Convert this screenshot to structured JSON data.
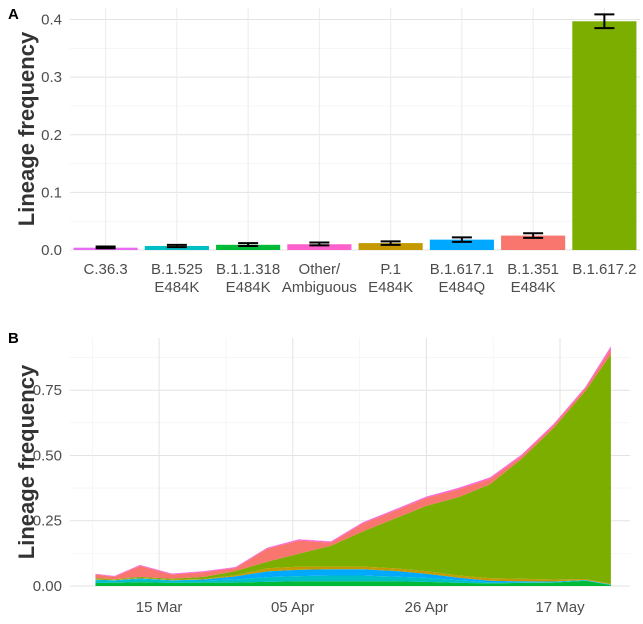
{
  "panels": {
    "a_label": "A",
    "b_label": "B"
  },
  "chart_data": [
    {
      "type": "bar",
      "panel": "A",
      "ylabel": "Lineage frequency",
      "xlabel": "",
      "ylim": [
        0,
        0.42
      ],
      "yticks": [
        "0.0",
        "0.1",
        "0.2",
        "0.3",
        "0.4"
      ],
      "grid": true,
      "categories": [
        [
          "C.36.3"
        ],
        [
          "B.1.525",
          "E484K"
        ],
        [
          "B.1.1.318",
          "E484K"
        ],
        [
          "Other/",
          "Ambiguous"
        ],
        [
          "P.1",
          "E484K"
        ],
        [
          "B.1.617.1",
          "E484Q"
        ],
        [
          "B.1.351",
          "E484K"
        ],
        [
          "B.1.617.2"
        ]
      ],
      "values": [
        0.004,
        0.007,
        0.009,
        0.01,
        0.012,
        0.018,
        0.025,
        0.397
      ],
      "err_low": [
        0.003,
        0.005,
        0.007,
        0.008,
        0.009,
        0.014,
        0.021,
        0.385
      ],
      "err_high": [
        0.006,
        0.009,
        0.012,
        0.013,
        0.015,
        0.022,
        0.029,
        0.409
      ],
      "colors": [
        "#E76BF3",
        "#00BFC4",
        "#00BA38",
        "#FF61CC",
        "#C49A00",
        "#00A9FF",
        "#F8766D",
        "#7CAE00"
      ]
    },
    {
      "type": "area",
      "panel": "B",
      "stacked": true,
      "ylabel": "Lineage frequency",
      "xlabel": "",
      "ylim": [
        0,
        0.95
      ],
      "yticks": [
        "0.00",
        "0.25",
        "0.50",
        "0.75"
      ],
      "xticks": [
        "15 Mar",
        "05 Apr",
        "26 Apr",
        "17 May"
      ],
      "xtick_days": [
        14,
        35,
        56,
        77
      ],
      "x": [
        "2021-03-05",
        "2021-03-08",
        "2021-03-12",
        "2021-03-17",
        "2021-03-22",
        "2021-03-27",
        "2021-04-01",
        "2021-04-06",
        "2021-04-11",
        "2021-04-16",
        "2021-04-21",
        "2021-04-26",
        "2021-05-01",
        "2021-05-06",
        "2021-05-11",
        "2021-05-16",
        "2021-05-21",
        "2021-05-25"
      ],
      "series": [
        {
          "color": "#00BA38",
          "values": [
            0.012,
            0.012,
            0.015,
            0.012,
            0.013,
            0.013,
            0.016,
            0.018,
            0.018,
            0.018,
            0.018,
            0.016,
            0.012,
            0.01,
            0.012,
            0.013,
            0.02,
            0.004
          ]
        },
        {
          "color": "#00BFC4",
          "values": [
            0.01,
            0.008,
            0.012,
            0.008,
            0.008,
            0.012,
            0.018,
            0.02,
            0.022,
            0.022,
            0.018,
            0.015,
            0.01,
            0.004,
            0.002,
            0.002,
            0.002,
            0.001
          ]
        },
        {
          "color": "#00A9FF",
          "values": [
            0.002,
            0.002,
            0.002,
            0.002,
            0.004,
            0.012,
            0.022,
            0.024,
            0.024,
            0.024,
            0.022,
            0.016,
            0.01,
            0.006,
            0.004,
            0.002,
            0.001,
            0.001
          ]
        },
        {
          "color": "#C49A00",
          "values": [
            0.002,
            0.002,
            0.002,
            0.002,
            0.002,
            0.004,
            0.012,
            0.012,
            0.01,
            0.01,
            0.01,
            0.01,
            0.008,
            0.01,
            0.01,
            0.008,
            0.004,
            0.002
          ]
        },
        {
          "color": "#7CAE00",
          "values": [
            0.004,
            0.002,
            0.004,
            0.004,
            0.008,
            0.016,
            0.025,
            0.05,
            0.08,
            0.135,
            0.19,
            0.25,
            0.3,
            0.36,
            0.46,
            0.58,
            0.72,
            0.88
          ]
        },
        {
          "color": "#F8766D",
          "values": [
            0.014,
            0.01,
            0.042,
            0.016,
            0.018,
            0.012,
            0.05,
            0.05,
            0.012,
            0.03,
            0.03,
            0.03,
            0.03,
            0.02,
            0.01,
            0.01,
            0.01,
            0.02
          ]
        },
        {
          "color": "#FF61CC",
          "values": [
            0.002,
            0.002,
            0.003,
            0.003,
            0.003,
            0.003,
            0.003,
            0.004,
            0.004,
            0.004,
            0.004,
            0.005,
            0.005,
            0.005,
            0.005,
            0.005,
            0.005,
            0.008
          ]
        },
        {
          "color": "#E76BF3",
          "values": [
            0.001,
            0.001,
            0.001,
            0.001,
            0.001,
            0.001,
            0.001,
            0.001,
            0.001,
            0.001,
            0.001,
            0.001,
            0.001,
            0.001,
            0.001,
            0.001,
            0.001,
            0.003
          ]
        }
      ]
    }
  ]
}
